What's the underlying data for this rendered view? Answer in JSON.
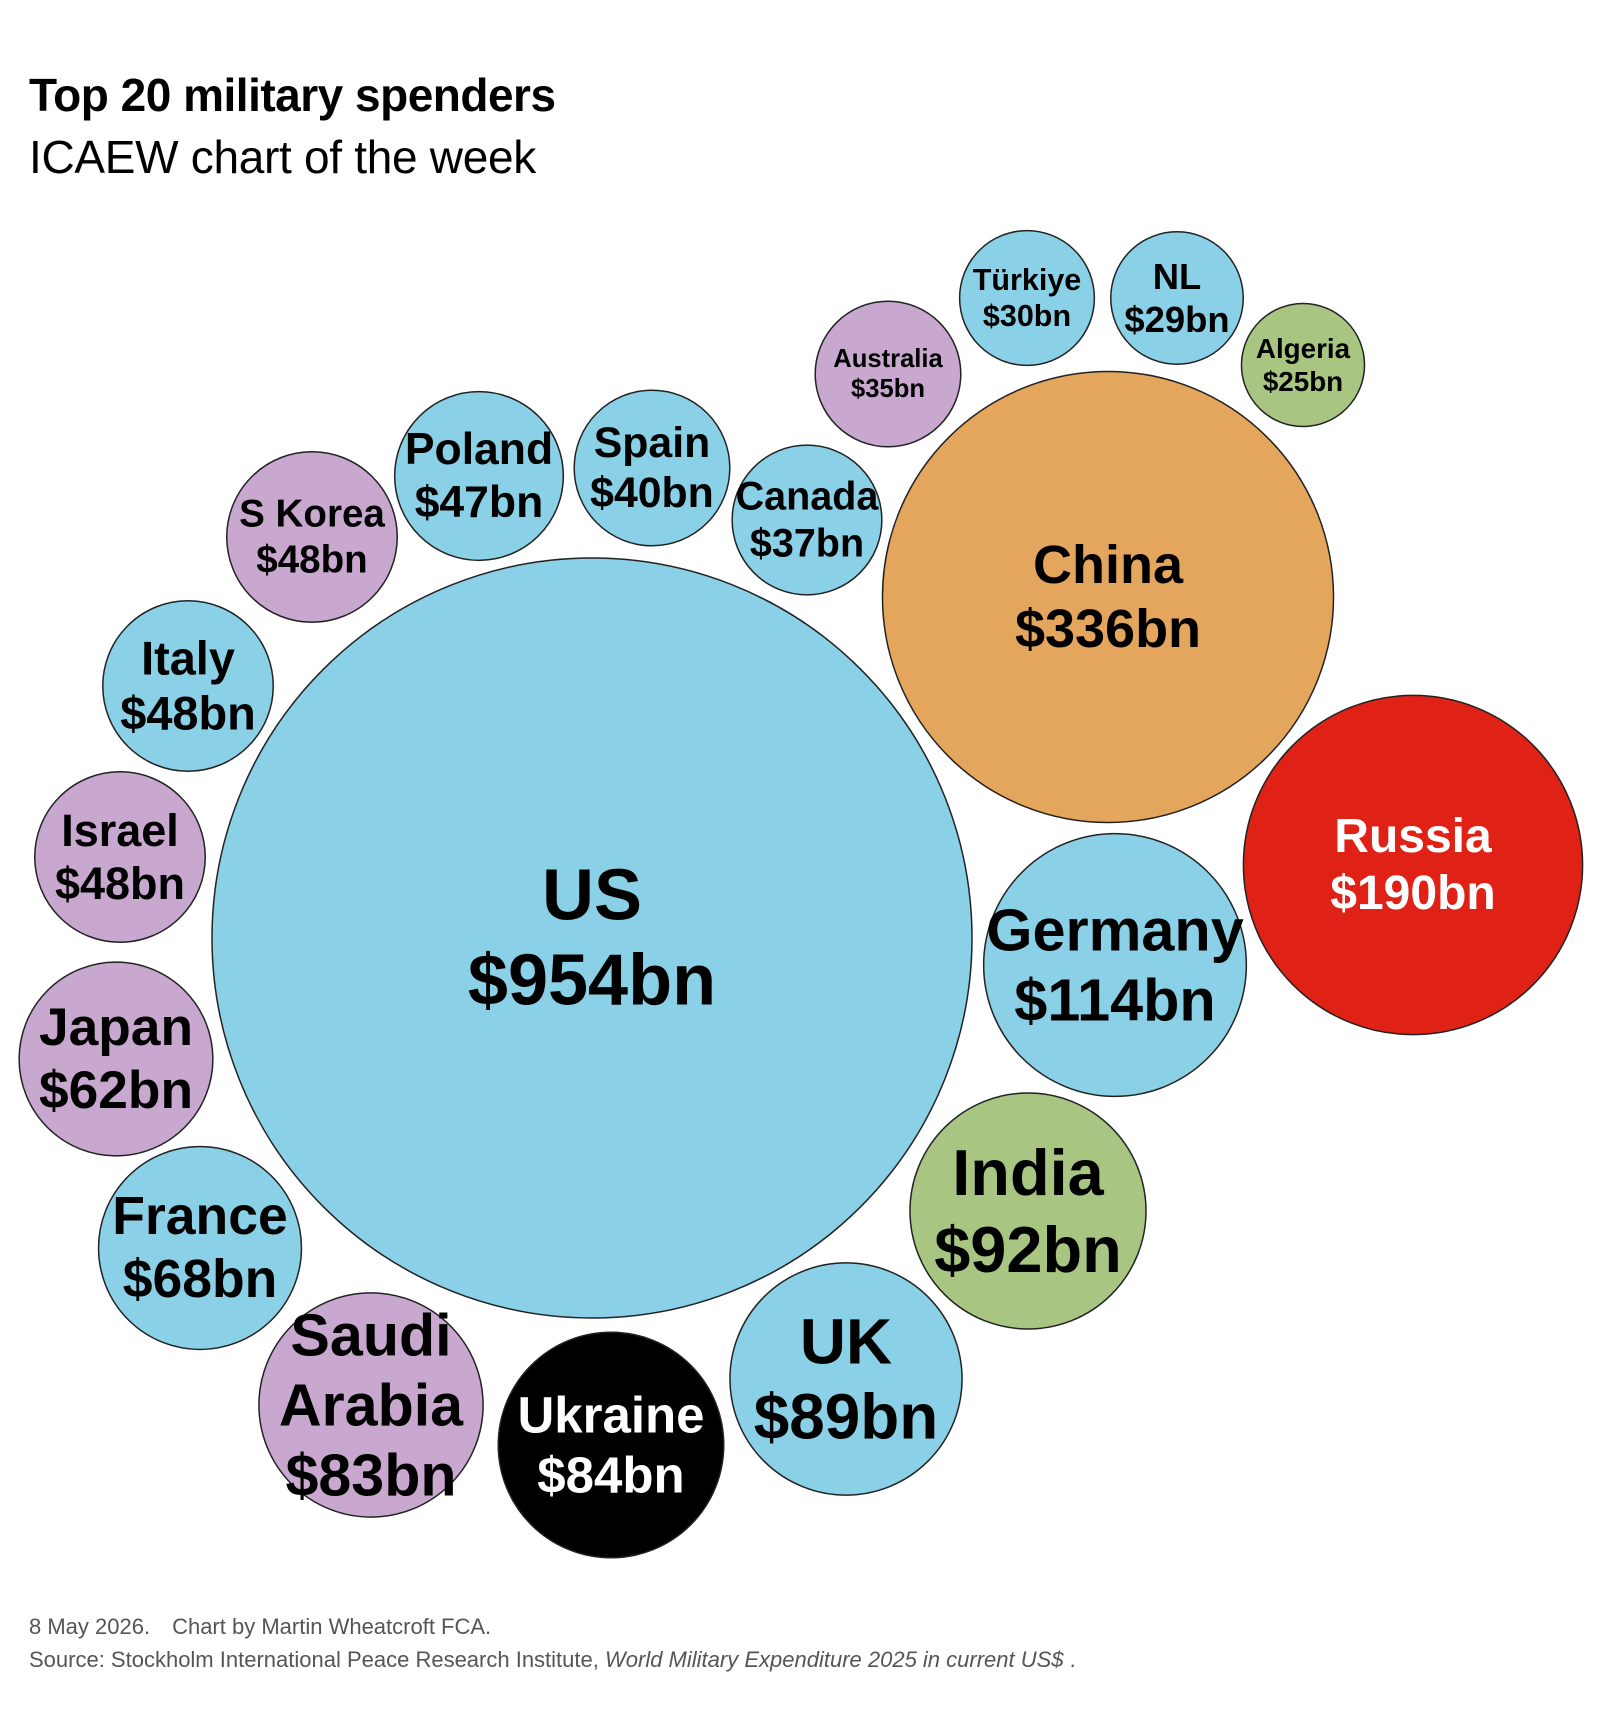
{
  "title": "Top 20 military spenders",
  "subtitle": "ICAEW chart of the week",
  "colors": {
    "blue": "#8ad0e6",
    "purple": "#c9a8d0",
    "green": "#a8c682",
    "orange": "#e4a55c",
    "red": "#e02216",
    "black": "#000000"
  },
  "chart_data": {
    "type": "bubble",
    "unit": "US$ bn",
    "series": [
      {
        "name": "US",
        "label": "$954bn",
        "value": 954,
        "color": "blue"
      },
      {
        "name": "China",
        "label": "$336bn",
        "value": 336,
        "color": "orange"
      },
      {
        "name": "Russia",
        "label": "$190bn",
        "value": 190,
        "color": "red"
      },
      {
        "name": "Germany",
        "label": "$114bn",
        "value": 114,
        "color": "blue"
      },
      {
        "name": "India",
        "label": "$92bn",
        "value": 92,
        "color": "green"
      },
      {
        "name": "UK",
        "label": "$89bn",
        "value": 89,
        "color": "blue"
      },
      {
        "name": "Ukraine",
        "label": "$84bn",
        "value": 84,
        "color": "black"
      },
      {
        "name": "Saudi Arabia",
        "lines": [
          "Saudi",
          "Arabia"
        ],
        "label": "$83bn",
        "value": 83,
        "color": "purple"
      },
      {
        "name": "France",
        "label": "$68bn",
        "value": 68,
        "color": "blue"
      },
      {
        "name": "Japan",
        "label": "$62bn",
        "value": 62,
        "color": "purple"
      },
      {
        "name": "Israel",
        "label": "$48bn",
        "value": 48,
        "color": "purple"
      },
      {
        "name": "Italy",
        "label": "$48bn",
        "value": 48,
        "color": "blue"
      },
      {
        "name": "S Korea",
        "label": "$48bn",
        "value": 48,
        "color": "purple"
      },
      {
        "name": "Poland",
        "label": "$47bn",
        "value": 47,
        "color": "blue"
      },
      {
        "name": "Spain",
        "label": "$40bn",
        "value": 40,
        "color": "blue"
      },
      {
        "name": "Canada",
        "label": "$37bn",
        "value": 37,
        "color": "blue"
      },
      {
        "name": "Australia",
        "label": "$35bn",
        "value": 35,
        "color": "purple"
      },
      {
        "name": "Türkiye",
        "label": "$30bn",
        "value": 30,
        "color": "blue"
      },
      {
        "name": "NL",
        "label": "$29bn",
        "value": 29,
        "color": "blue"
      },
      {
        "name": "Algeria",
        "label": "$25bn",
        "value": 25,
        "color": "green"
      }
    ]
  },
  "footer": {
    "date": "8 May 2026.",
    "credit": "Chart by Martin Wheatcroft FCA.",
    "source_prefix": "Source: Stockholm International Peace Research Institute,",
    "source_title": "World Military Expenditure 2025 in current US$",
    "source_suffix": "."
  }
}
